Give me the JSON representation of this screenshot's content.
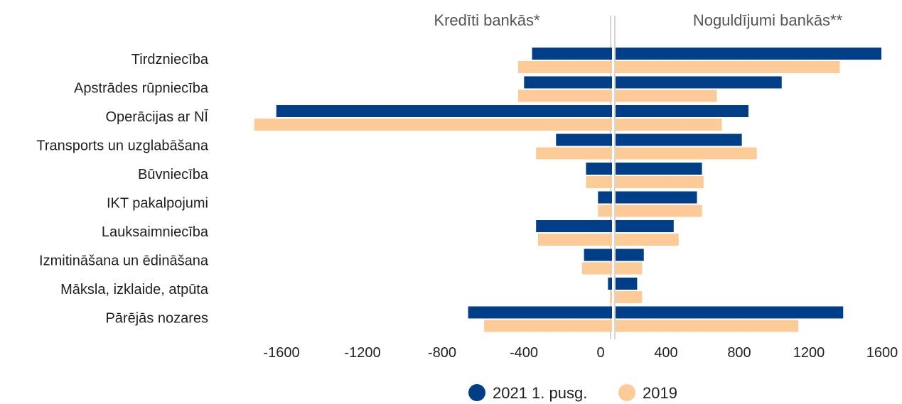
{
  "chart_data": {
    "type": "bar",
    "orientation": "horizontal",
    "panels": [
      {
        "key": "loans",
        "title": "Kredīti bankās*",
        "direction": "negative"
      },
      {
        "key": "deposits",
        "title": "Noguldījumi bankās**",
        "direction": "positive"
      }
    ],
    "categories": [
      "Tirdzniecība",
      "Apstrādes rūpniecība",
      "Operācijas ar NĪ",
      "Transports un uzglabāšana",
      "Būvniecība",
      "IKT pakalpojumi",
      "Lauksaimniecība",
      "Izmitināšana un ēdināšana",
      "Māksla, izklaide, atpūta",
      "Pārējās nozares"
    ],
    "series": [
      {
        "name": "2021 1. pusg.",
        "color": "#003f87",
        "loans": [
          -400,
          -440,
          -1680,
          -280,
          -130,
          -70,
          -380,
          -140,
          -20,
          -720
        ],
        "deposits": [
          1600,
          1000,
          800,
          760,
          520,
          490,
          350,
          170,
          130,
          1370
        ]
      },
      {
        "name": "2019",
        "color": "#fccb98",
        "loans": [
          -470,
          -470,
          -1790,
          -380,
          -130,
          -70,
          -370,
          -150,
          -10,
          -640
        ],
        "deposits": [
          1350,
          610,
          640,
          850,
          530,
          520,
          380,
          160,
          160,
          1100
        ]
      }
    ],
    "x_ticks": [
      "-1600",
      "-1200",
      "-800",
      "-400",
      "0",
      "400",
      "800",
      "1200",
      "1600"
    ],
    "xlim_left": [
      -1800,
      0
    ],
    "xlim_right": [
      0,
      1600
    ],
    "legend_position": "bottom-center",
    "grid": false
  }
}
